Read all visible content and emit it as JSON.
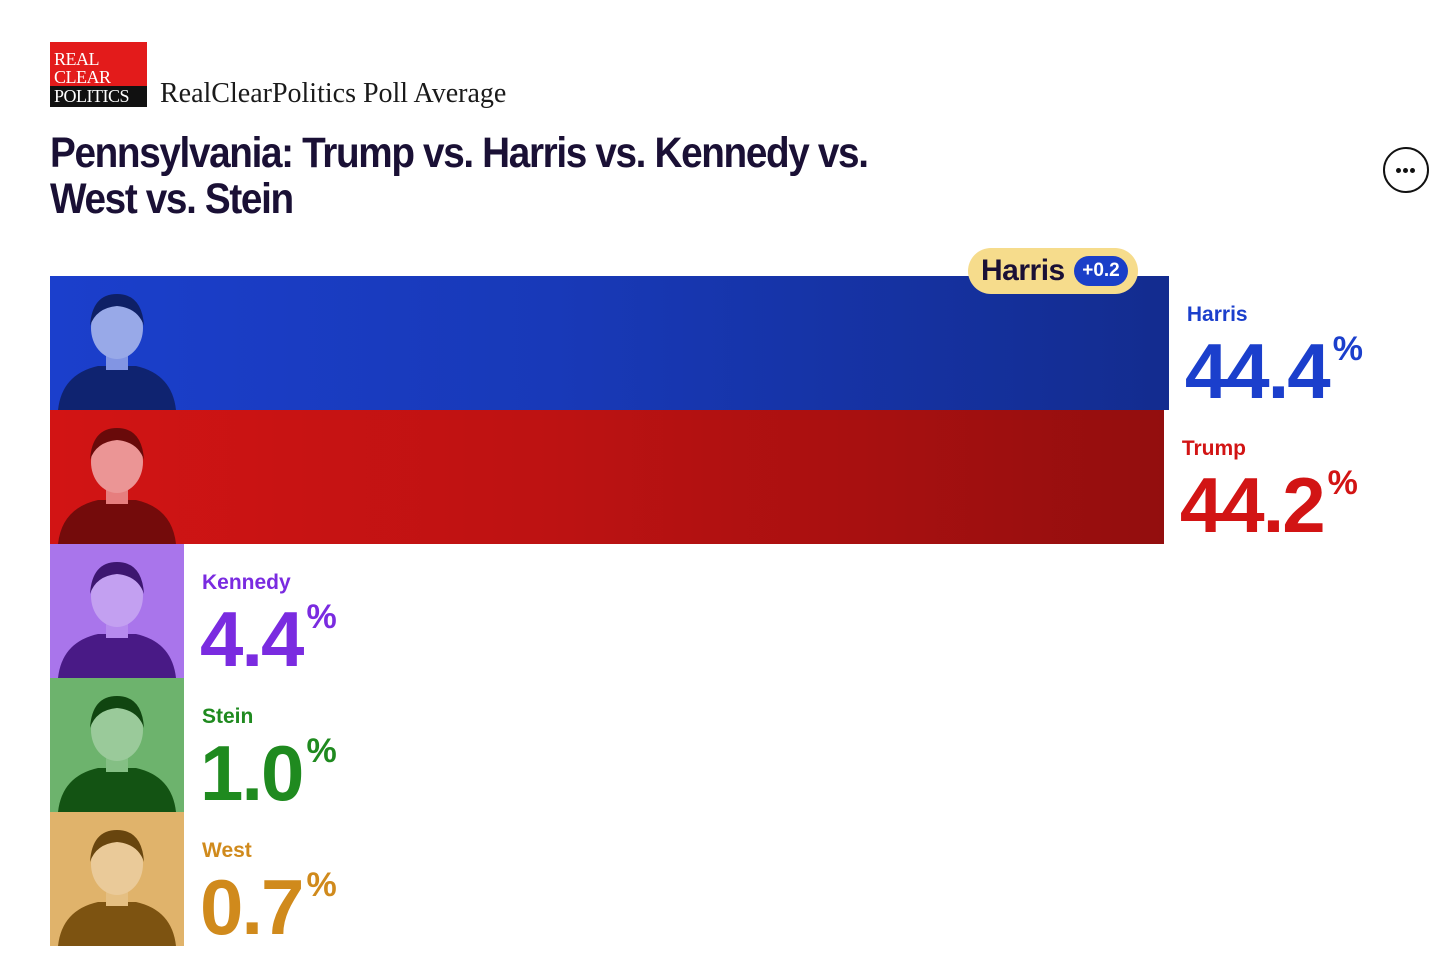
{
  "header": {
    "logo_lines": [
      "REAL",
      "CLEAR",
      "POLITICS"
    ],
    "source_title": "RealClearPolitics Poll Average",
    "title": "Pennsylvania: Trump vs. Harris vs. Kennedy vs. West vs. Stein",
    "more_icon": "more-horizontal-icon"
  },
  "leader": {
    "name": "Harris",
    "margin": "+0.2"
  },
  "chart_data": {
    "type": "bar",
    "orientation": "horizontal",
    "title": "Pennsylvania: Trump vs. Harris vs. Kennedy vs. West vs. Stein",
    "value_unit": "%",
    "categories": [
      "Harris",
      "Trump",
      "Kennedy",
      "Stein",
      "West"
    ],
    "values": [
      44.4,
      44.2,
      4.4,
      1.0,
      0.7
    ],
    "value_labels": [
      "44.4",
      "44.2",
      "4.4",
      "1.0",
      "0.7"
    ],
    "percent_symbol": "%",
    "colors": {
      "Harris": "#1b3fcc",
      "Trump": "#d21414",
      "Kennedy": "#7a2be0",
      "Stein": "#1f8a1f",
      "West": "#d08a1c"
    },
    "leader": "Harris",
    "lead_margin": "+0.2"
  }
}
